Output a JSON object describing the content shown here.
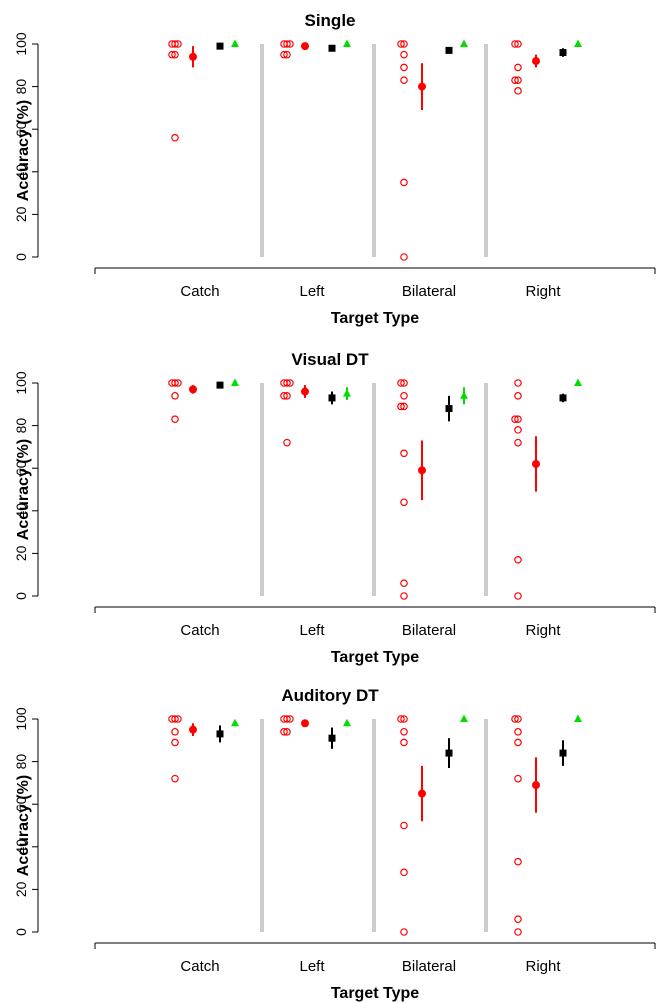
{
  "colors": {
    "individual": "#ff0000",
    "group_mean": "#ff0000",
    "black_series": "#000000",
    "green_series": "#00dd00",
    "separator": "#cccccc"
  },
  "chart_data": [
    {
      "type": "scatter",
      "title": "Single",
      "xlabel": "Target Type",
      "ylabel": "Accuracy (%)",
      "ylim": [
        0,
        100
      ],
      "yticks": [
        "0",
        "20",
        "40",
        "60",
        "80",
        "100"
      ],
      "categories": [
        "Catch",
        "Left",
        "Bilateral",
        "Right"
      ],
      "individual_points": [
        [
          100,
          100,
          100,
          95,
          95,
          56
        ],
        [
          100,
          100,
          100,
          95,
          95
        ],
        [
          100,
          100,
          95,
          89,
          83,
          35,
          0
        ],
        [
          100,
          100,
          89,
          83,
          83,
          78
        ]
      ],
      "series": [
        {
          "marker": "filled-circle",
          "color": "#ff0000",
          "values": [
            94,
            99,
            80,
            92
          ],
          "error": [
            5,
            0,
            11,
            3
          ]
        },
        {
          "marker": "square",
          "color": "#000000",
          "values": [
            99,
            98,
            97,
            96
          ],
          "error": [
            0,
            0,
            1,
            2
          ]
        },
        {
          "marker": "triangle",
          "color": "#00dd00",
          "values": [
            100,
            100,
            100,
            100
          ],
          "error": [
            0,
            0,
            0,
            0
          ]
        }
      ]
    },
    {
      "type": "scatter",
      "title": "Visual DT",
      "xlabel": "Target Type",
      "ylabel": "Accuracy (%)",
      "ylim": [
        0,
        100
      ],
      "yticks": [
        "0",
        "20",
        "40",
        "60",
        "80",
        "100"
      ],
      "categories": [
        "Catch",
        "Left",
        "Bilateral",
        "Right"
      ],
      "individual_points": [
        [
          100,
          100,
          100,
          94,
          83
        ],
        [
          100,
          100,
          100,
          94,
          94,
          72
        ],
        [
          100,
          100,
          94,
          89,
          89,
          67,
          44,
          6,
          0
        ],
        [
          100,
          94,
          83,
          83,
          78,
          72,
          17,
          0
        ]
      ],
      "series": [
        {
          "marker": "filled-circle",
          "color": "#ff0000",
          "values": [
            97,
            96,
            59,
            62
          ],
          "error": [
            2,
            3,
            14,
            13
          ]
        },
        {
          "marker": "square",
          "color": "#000000",
          "values": [
            99,
            93,
            88,
            93
          ],
          "error": [
            1,
            3,
            6,
            2
          ]
        },
        {
          "marker": "triangle",
          "color": "#00dd00",
          "values": [
            100,
            95,
            94,
            100
          ],
          "error": [
            0,
            3,
            4,
            0
          ]
        }
      ]
    },
    {
      "type": "scatter",
      "title": "Auditory DT",
      "xlabel": "Target Type",
      "ylabel": "Accuracy (%)",
      "ylim": [
        0,
        100
      ],
      "yticks": [
        "0",
        "20",
        "40",
        "60",
        "80",
        "100"
      ],
      "categories": [
        "Catch",
        "Left",
        "Bilateral",
        "Right"
      ],
      "individual_points": [
        [
          100,
          100,
          100,
          94,
          89,
          72
        ],
        [
          100,
          100,
          100,
          94,
          94
        ],
        [
          100,
          100,
          94,
          89,
          50,
          28,
          0
        ],
        [
          100,
          100,
          94,
          89,
          72,
          33,
          6,
          0
        ]
      ],
      "series": [
        {
          "marker": "filled-circle",
          "color": "#ff0000",
          "values": [
            95,
            98,
            65,
            69
          ],
          "error": [
            3,
            1,
            13,
            13
          ]
        },
        {
          "marker": "square",
          "color": "#000000",
          "values": [
            93,
            91,
            84,
            84
          ],
          "error": [
            4,
            5,
            7,
            6
          ]
        },
        {
          "marker": "triangle",
          "color": "#00dd00",
          "values": [
            98,
            98,
            100,
            100
          ],
          "error": [
            0,
            0,
            0,
            0
          ]
        }
      ]
    }
  ]
}
